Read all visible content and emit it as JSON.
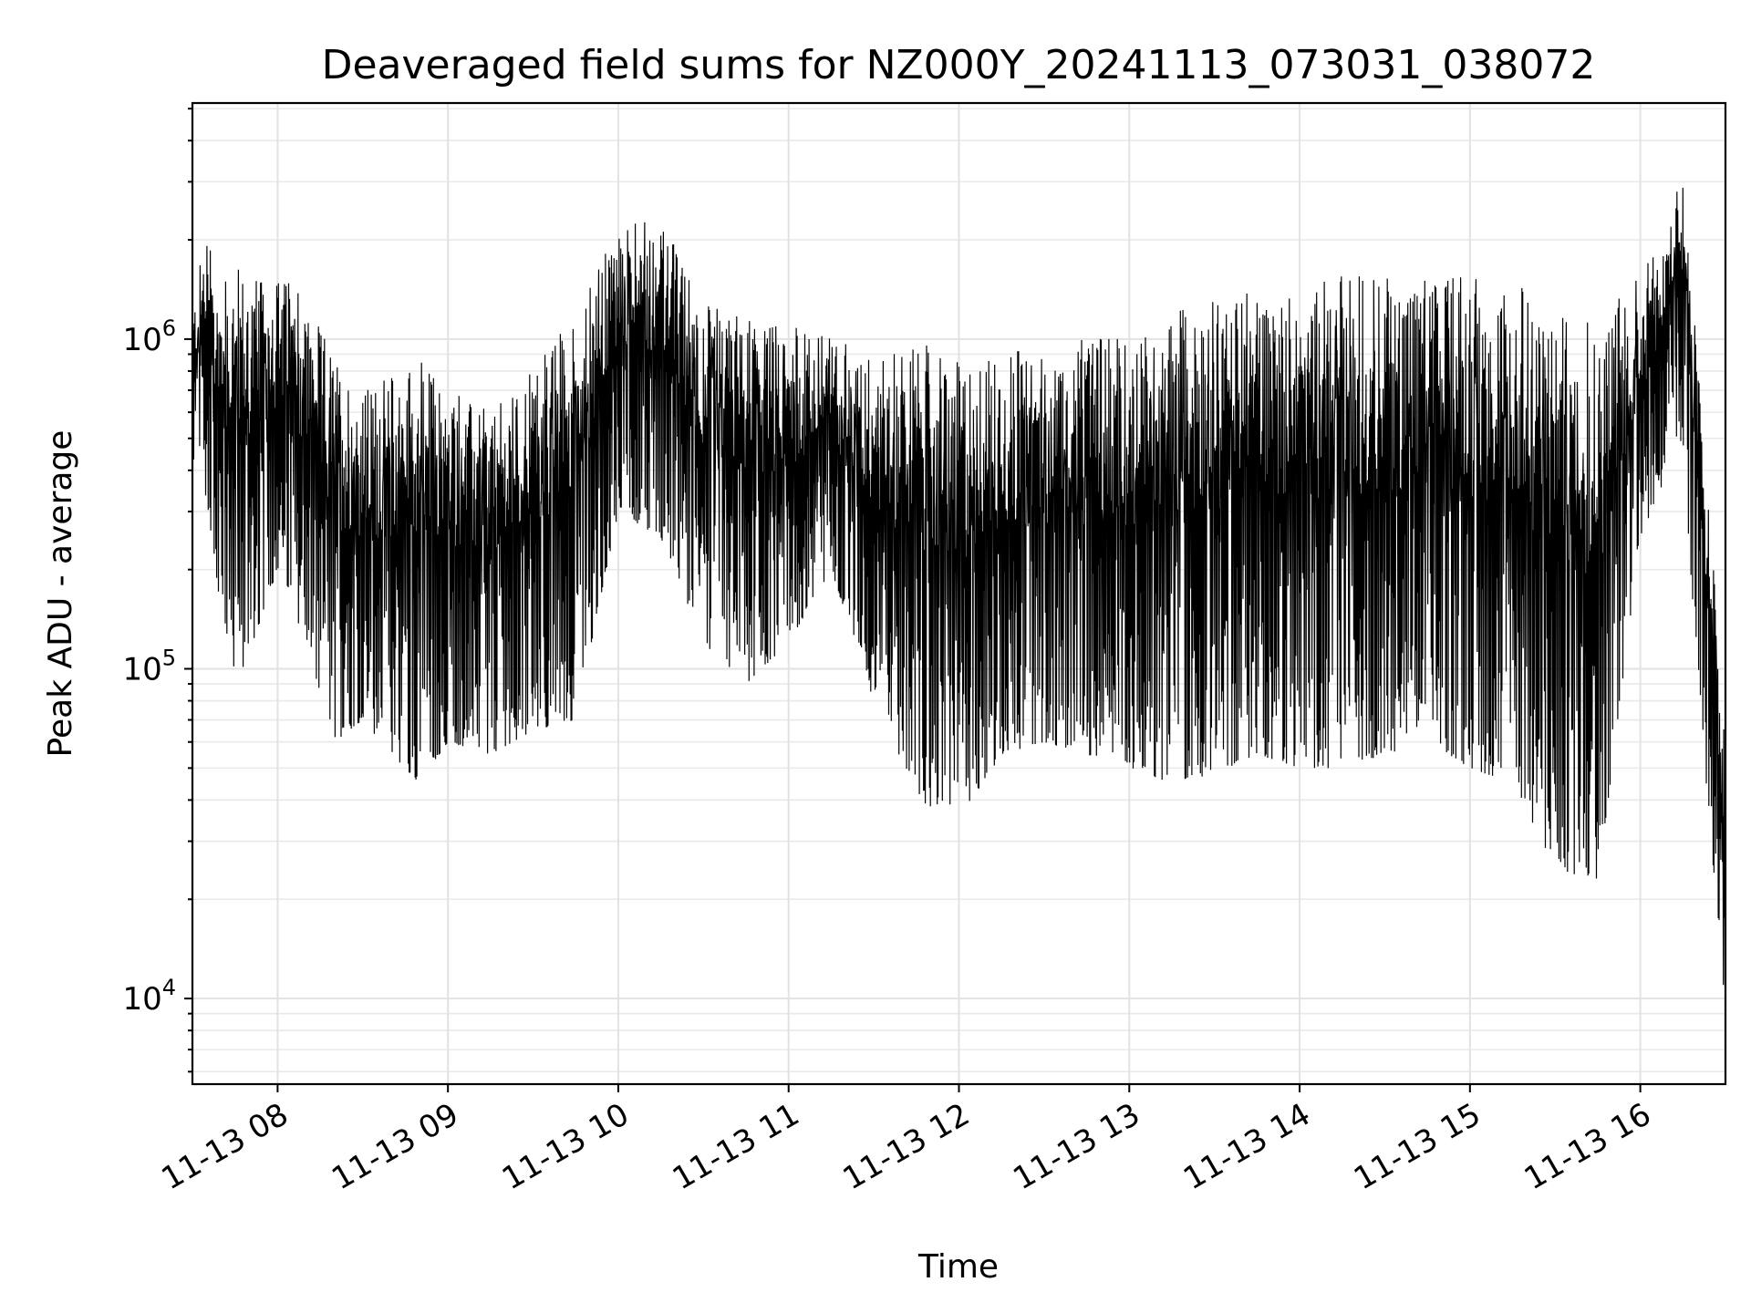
{
  "chart_data": {
    "type": "line",
    "title": "Deaveraged field sums for NZ000Y_20241113_073031_038072",
    "xlabel": "Time",
    "ylabel": "Peak ADU - average",
    "yscale": "log",
    "ylim": [
      5500,
      5200000
    ],
    "xlim": [
      "11-13 07:30",
      "11-13 16:30"
    ],
    "grid": true,
    "line_color": "#000000",
    "x_ticks": [
      "11-13 08",
      "11-13 09",
      "11-13 10",
      "11-13 11",
      "11-13 12",
      "11-13 13",
      "11-13 14",
      "11-13 15",
      "11-13 16"
    ],
    "y_ticks": [
      {
        "base": "10",
        "exp": "4",
        "value": 10000
      },
      {
        "base": "10",
        "exp": "5",
        "value": 100000
      },
      {
        "base": "10",
        "exp": "6",
        "value": 1000000
      }
    ],
    "series": [
      {
        "x": [
          "11-13 07:30",
          "11-13 07:35",
          "11-13 07:40",
          "11-13 07:45",
          "11-13 07:50",
          "11-13 07:55",
          "11-13 08:00",
          "11-13 08:10",
          "11-13 08:20",
          "11-13 08:30",
          "11-13 08:40",
          "11-13 08:50",
          "11-13 09:00",
          "11-13 09:15",
          "11-13 09:30",
          "11-13 09:45",
          "11-13 10:00",
          "11-13 10:15",
          "11-13 10:30",
          "11-13 10:45",
          "11-13 11:00",
          "11-13 11:15",
          "11-13 11:30",
          "11-13 11:45",
          "11-13 12:00",
          "11-13 12:15",
          "11-13 12:30",
          "11-13 12:45",
          "11-13 13:00",
          "11-13 13:15",
          "11-13 13:30",
          "11-13 13:45",
          "11-13 14:00",
          "11-13 14:15",
          "11-13 14:30",
          "11-13 14:45",
          "11-13 15:00",
          "11-13 15:15",
          "11-13 15:30",
          "11-13 15:45",
          "11-13 16:00",
          "11-13 16:10",
          "11-13 16:15",
          "11-13 16:20",
          "11-13 16:25",
          "11-13 16:30"
        ],
        "low": [
          420000,
          330000,
          150000,
          90000,
          110000,
          150000,
          200000,
          120000,
          60000,
          70000,
          55000,
          45000,
          60000,
          55000,
          65000,
          70000,
          300000,
          250000,
          120000,
          90000,
          120000,
          200000,
          80000,
          40000,
          35000,
          55000,
          60000,
          55000,
          50000,
          45000,
          48000,
          55000,
          50000,
          50000,
          55000,
          60000,
          50000,
          45000,
          25000,
          22000,
          250000,
          400000,
          500000,
          90000,
          30000,
          8000
        ],
        "high": [
          1200000,
          2300000,
          1400000,
          1700000,
          1600000,
          1500000,
          1600000,
          1300000,
          900000,
          700000,
          800000,
          900000,
          700000,
          600000,
          800000,
          1200000,
          2200000,
          2300000,
          1300000,
          1200000,
          1100000,
          1000000,
          900000,
          1000000,
          850000,
          900000,
          950000,
          1000000,
          1000000,
          1200000,
          1300000,
          1400000,
          1500000,
          1550000,
          1550000,
          1500000,
          1550000,
          1500000,
          1200000,
          1100000,
          1600000,
          2000000,
          3800000,
          900000,
          250000,
          60000
        ]
      }
    ]
  }
}
